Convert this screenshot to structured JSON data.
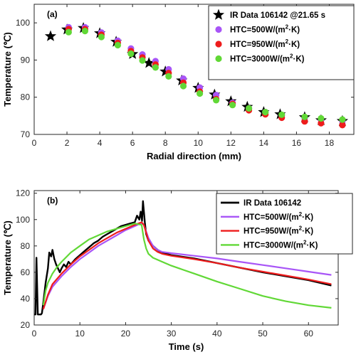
{
  "chart_data": [
    {
      "type": "scatter",
      "panel_label": "(a)",
      "xlabel": "Radial direction (mm)",
      "ylabel": "Temperature (℃)",
      "xlim": [
        0,
        19.5
      ],
      "ylim": [
        70,
        105
      ],
      "xticks": [
        0,
        2,
        4,
        6,
        8,
        10,
        12,
        14,
        16,
        18
      ],
      "yticks": [
        70,
        80,
        90,
        100
      ],
      "legend_position": "top-right",
      "series": [
        {
          "name": "IR Data 106142 @21.65 s",
          "marker": "star",
          "color": "#000000",
          "x": [
            1,
            2,
            3,
            4,
            5,
            6,
            7,
            8,
            9,
            10,
            11,
            12,
            13,
            14,
            15,
            16.5,
            17.5,
            18.8
          ],
          "y": [
            96.4,
            98.2,
            98.6,
            97.2,
            94.9,
            91.6,
            89.2,
            86.9,
            84.5,
            82.5,
            80.7,
            78.9,
            77.4,
            76.0,
            75.4,
            74.6,
            73.8,
            73.6
          ]
        },
        {
          "name": "HTC=500W/(m²·K)",
          "marker": "circle",
          "color": "#A855F7",
          "x": [
            2.1,
            3.1,
            4.1,
            5.1,
            5.9,
            6.6,
            7.4,
            8.2,
            9.1,
            10.1,
            11.1,
            12.1,
            13.1,
            14.1,
            15.1,
            16.5,
            17.5,
            18.8
          ],
          "y": [
            98.8,
            98.8,
            97.4,
            95.2,
            93.1,
            91.5,
            89.7,
            87.5,
            85.0,
            82.6,
            80.6,
            78.5,
            77.0,
            76.0,
            75.1,
            74.5,
            74.0,
            73.6
          ]
        },
        {
          "name": "HTC=950W/(m²·K)",
          "marker": "circle",
          "color": "#EE1C1C",
          "x": [
            2.1,
            3.1,
            4.1,
            5.1,
            5.9,
            6.6,
            7.4,
            8.2,
            9.1,
            10.1,
            11.1,
            12.1,
            13.1,
            14.1,
            15.1,
            16.5,
            17.5,
            18.8
          ],
          "y": [
            98.3,
            98.3,
            96.8,
            94.6,
            92.4,
            90.7,
            88.8,
            86.5,
            83.9,
            81.5,
            79.5,
            78.2,
            76.5,
            75.4,
            74.5,
            73.5,
            73.0,
            72.5
          ]
        },
        {
          "name": "HTC=3000W/(m²·K)",
          "marker": "circle",
          "color": "#61D836",
          "x": [
            2.1,
            3.1,
            4.1,
            5.1,
            5.9,
            6.6,
            7.4,
            8.2,
            9.1,
            10.1,
            11.1,
            12.1,
            13.1,
            14.1,
            15.1,
            16.5,
            17.5,
            18.8
          ],
          "y": [
            97.5,
            97.8,
            96.2,
            94.0,
            91.7,
            89.9,
            88.0,
            85.6,
            83.0,
            81.0,
            79.2,
            77.9,
            77.0,
            76.0,
            75.3,
            74.7,
            74.3,
            74.0
          ]
        }
      ]
    },
    {
      "type": "line",
      "panel_label": "(b)",
      "xlabel": "Time (s)",
      "ylabel": "Temperature (℃)",
      "xlim": [
        0,
        66.5
      ],
      "ylim": [
        20,
        122
      ],
      "xticks": [
        0,
        10,
        20,
        30,
        40,
        50,
        60
      ],
      "yticks": [
        20,
        40,
        60,
        80,
        100,
        120
      ],
      "legend_position": "top-right",
      "series": [
        {
          "name": "IR Data 106142",
          "color": "#000000",
          "x": [
            0,
            0.3,
            0.5,
            0.8,
            1.0,
            1.2,
            1.5,
            1.7,
            2,
            2.5,
            3,
            3.3,
            3.7,
            4.0,
            4.4,
            4.8,
            5.2,
            5.6,
            6,
            6.5,
            7,
            7.5,
            8,
            9,
            10,
            11,
            12,
            13,
            14,
            15,
            16,
            17,
            18,
            19,
            20,
            21,
            22,
            22.5,
            23,
            23.3,
            23.6,
            23.8,
            24.0,
            24.2,
            24.5,
            25,
            26,
            27,
            28,
            30,
            35,
            40,
            45,
            50,
            55,
            60,
            65
          ],
          "y": [
            28,
            28,
            71,
            28,
            28,
            28,
            28,
            29,
            37,
            52,
            63,
            75,
            72,
            77,
            70,
            66,
            63,
            60,
            63,
            66,
            64,
            68,
            66,
            70,
            73,
            76,
            79,
            82,
            84,
            87,
            89,
            91,
            93,
            95,
            96,
            97,
            98,
            103,
            100,
            106,
            99,
            114,
            106,
            98,
            89,
            84,
            80,
            77,
            75,
            73,
            70.5,
            67,
            63.5,
            60,
            57,
            54,
            50
          ]
        },
        {
          "name": "HTC=500W/(m²·K)",
          "color": "#A855F7",
          "x": [
            2,
            3,
            4,
            6,
            8,
            10,
            12,
            14,
            16,
            18,
            20,
            22,
            23.5,
            24,
            25,
            26,
            27,
            28,
            30,
            35,
            40,
            45,
            50,
            55,
            60,
            65
          ],
          "y": [
            32,
            42,
            49,
            57,
            64,
            70,
            75,
            80,
            84,
            88,
            92,
            95,
            97.5,
            96,
            86,
            80,
            77,
            75.5,
            74.5,
            72.5,
            70.5,
            68,
            65.5,
            63,
            60.5,
            58
          ]
        },
        {
          "name": "HTC=950W/(m²·K)",
          "color": "#EE1C1C",
          "x": [
            2,
            3,
            4,
            6,
            8,
            10,
            12,
            14,
            16,
            18,
            20,
            22,
            23.5,
            24,
            25,
            26,
            27,
            28,
            30,
            35,
            40,
            45,
            50,
            55,
            60,
            65
          ],
          "y": [
            32,
            43,
            51,
            59,
            66,
            72,
            77,
            82,
            86,
            90,
            93,
            96,
            98,
            96,
            84,
            78,
            75.5,
            74,
            72.5,
            70,
            67,
            63.5,
            60.5,
            57.5,
            54.5,
            51
          ]
        },
        {
          "name": "HTC=3000W/(m²·K)",
          "color": "#61D836",
          "x": [
            2,
            2.5,
            3,
            4,
            5,
            6,
            8,
            10,
            12,
            14,
            16,
            18,
            20,
            22,
            23.5,
            24,
            24.5,
            25,
            26,
            28,
            30,
            35,
            40,
            45,
            50,
            55,
            60,
            65
          ],
          "y": [
            35,
            46,
            52,
            59,
            64,
            68,
            75,
            80,
            85,
            88,
            91,
            93,
            95,
            97,
            96,
            85,
            78,
            74,
            71,
            68,
            65,
            59,
            53,
            47.5,
            42,
            38,
            35,
            33
          ]
        }
      ]
    }
  ]
}
